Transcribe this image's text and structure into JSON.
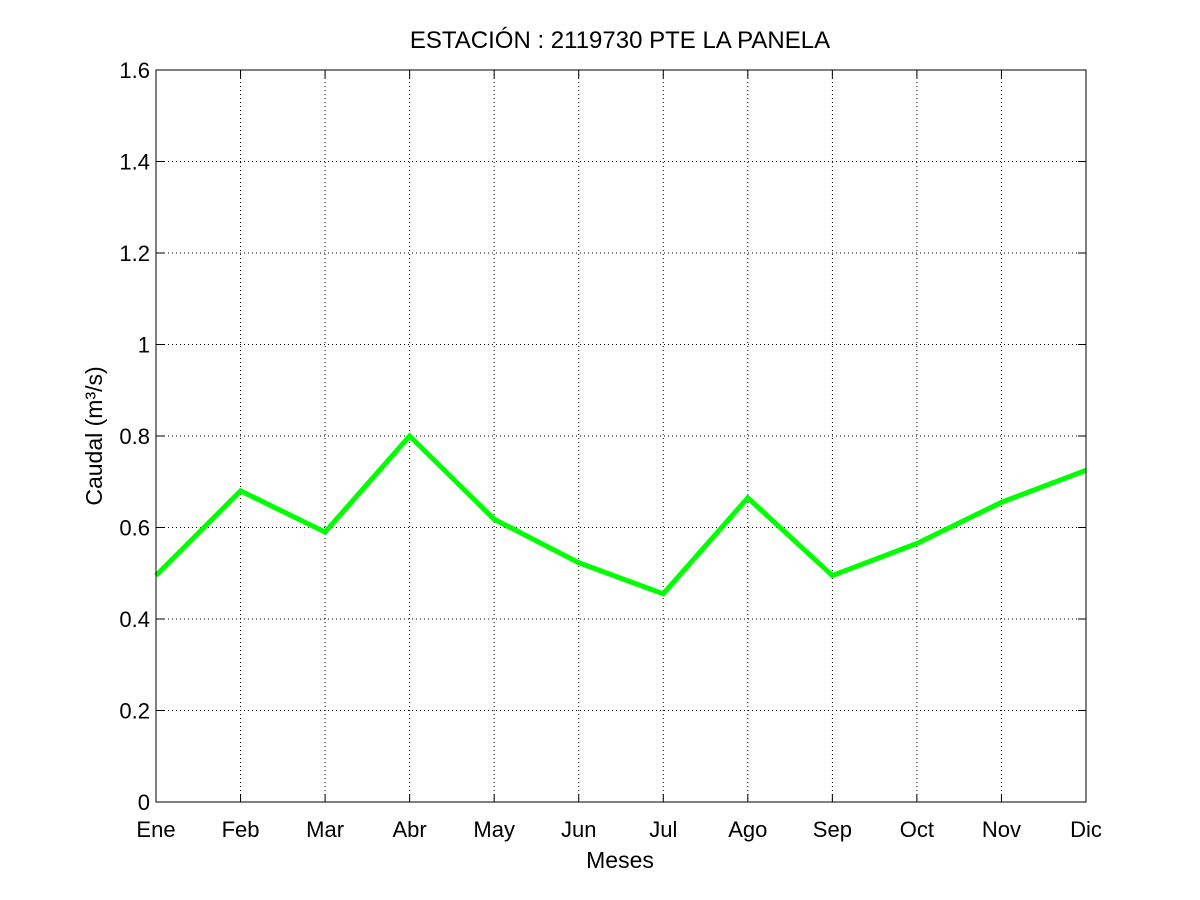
{
  "chart_data": {
    "type": "line",
    "title": "ESTACIÓN :  2119730  PTE LA PANELA",
    "xlabel": "Meses",
    "ylabel": "Caudal (m³/s)",
    "categories": [
      "Ene",
      "Feb",
      "Mar",
      "Abr",
      "May",
      "Jun",
      "Jul",
      "Ago",
      "Sep",
      "Oct",
      "Nov",
      "Dic"
    ],
    "series": [
      {
        "values": [
          0.495,
          0.68,
          0.59,
          0.8,
          0.618,
          0.523,
          0.455,
          0.665,
          0.495,
          0.565,
          0.655,
          0.725
        ],
        "color": "#00ff00"
      }
    ],
    "ylim": [
      0,
      1.6
    ],
    "yticks": [
      "0",
      "0.2",
      "0.4",
      "0.6",
      "0.8",
      "1",
      "1.2",
      "1.4",
      "1.6"
    ],
    "grid": true
  }
}
